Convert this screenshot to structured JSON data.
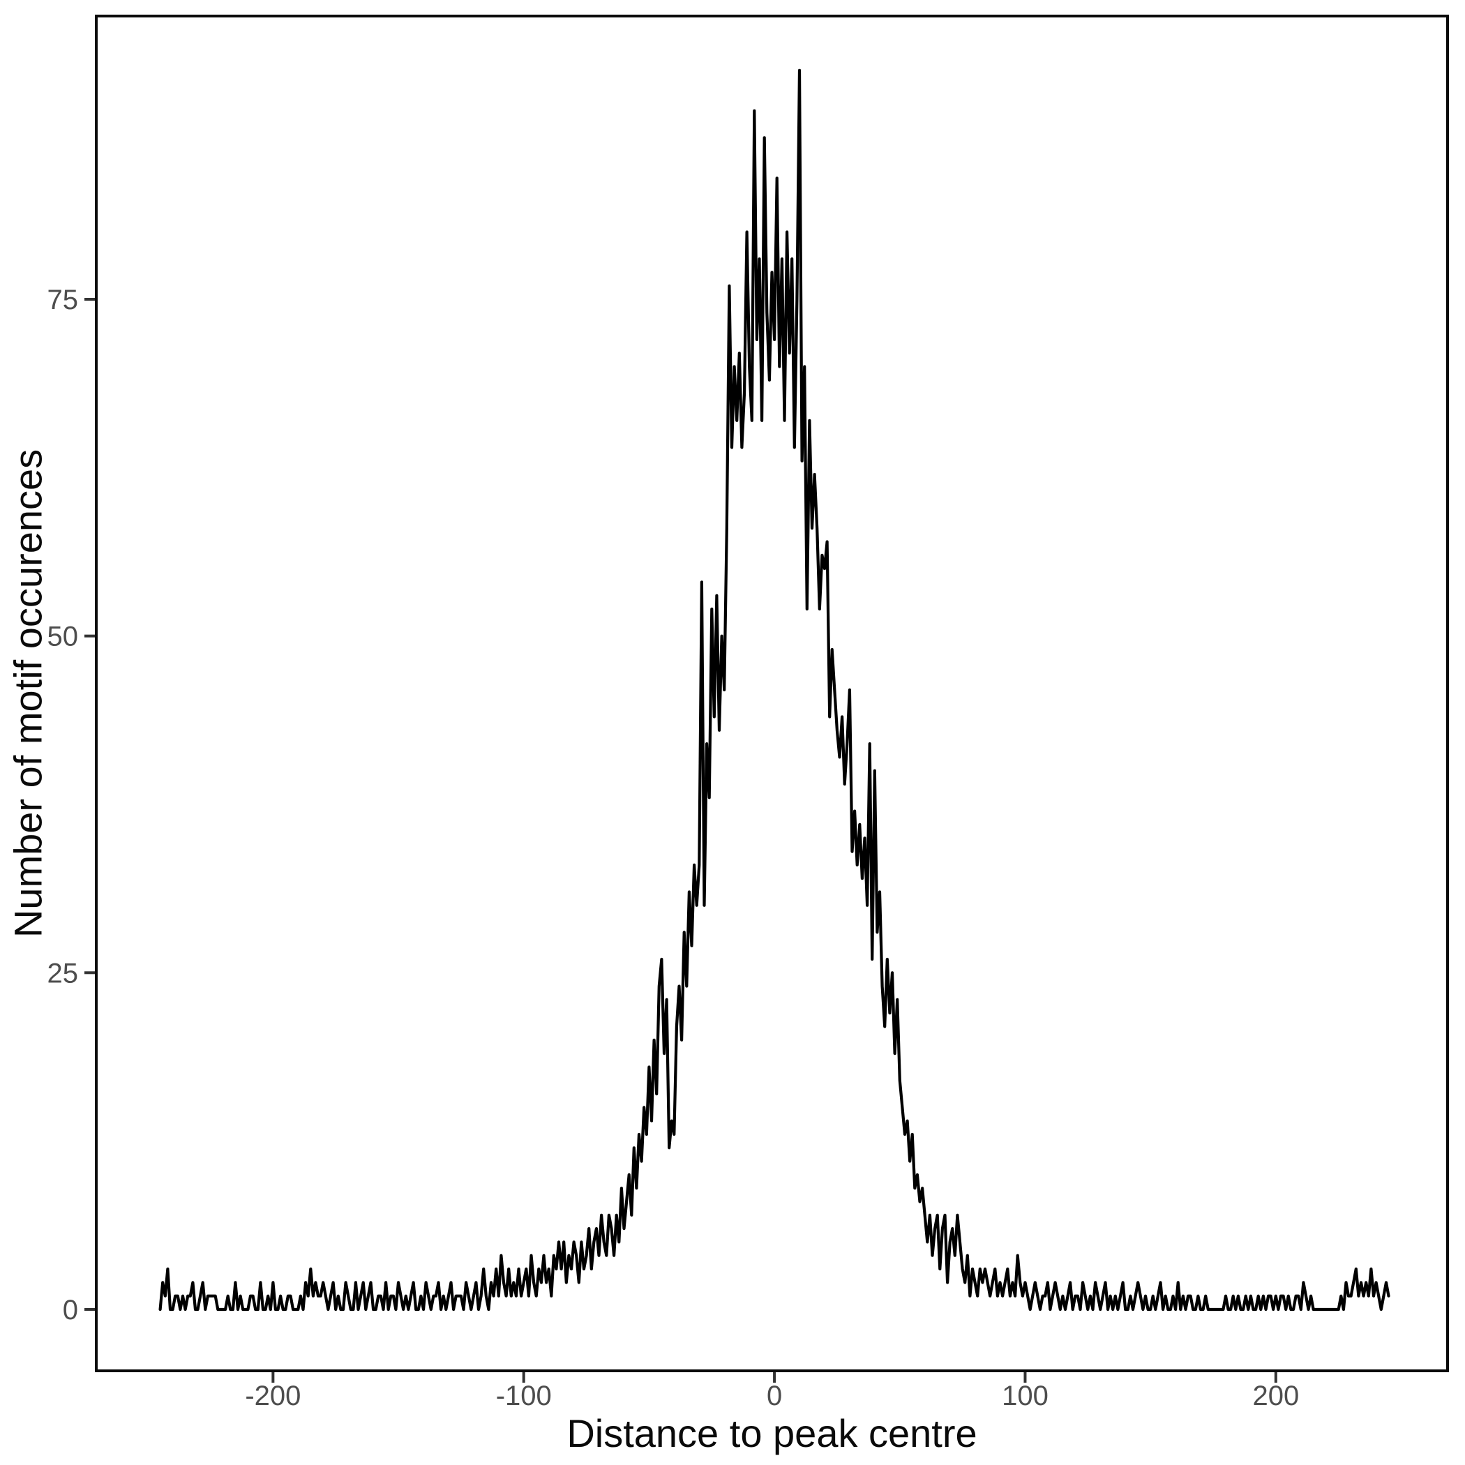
{
  "figure": {
    "background": "#ffffff"
  },
  "chart_data": {
    "type": "line",
    "title": "",
    "xlabel": "Distance to peak centre",
    "ylabel": "Number of motif occurences",
    "x_ticks": [
      -200,
      -100,
      0,
      100,
      200
    ],
    "y_ticks": [
      0,
      25,
      50,
      75
    ],
    "xlim": [
      -270.5,
      268.5
    ],
    "ylim": [
      -4.56,
      96.03
    ],
    "grid": "off",
    "legend": "none",
    "line_color": "#000000",
    "line_width": 4.2,
    "tick_label_color": "#4d4d4d",
    "tick_mark_color": "#333333",
    "panel_border_color": "#0a0a0a",
    "x_start": -245,
    "x_step": 1,
    "values": [
      0,
      2,
      1,
      3,
      0,
      0,
      1,
      1,
      0,
      1,
      0,
      1,
      1,
      2,
      0,
      0,
      1,
      2,
      0,
      1,
      1,
      1,
      1,
      0,
      0,
      0,
      0,
      1,
      0,
      0,
      2,
      0,
      1,
      0,
      0,
      0,
      1,
      1,
      0,
      0,
      2,
      0,
      0,
      1,
      0,
      2,
      0,
      0,
      1,
      0,
      0,
      1,
      1,
      0,
      0,
      0,
      1,
      0,
      2,
      1,
      3,
      1,
      2,
      1,
      1,
      2,
      1,
      0,
      1,
      2,
      0,
      1,
      0,
      0,
      2,
      1,
      0,
      0,
      2,
      0,
      1,
      2,
      0,
      1,
      2,
      0,
      0,
      1,
      1,
      0,
      2,
      0,
      1,
      1,
      0,
      2,
      1,
      0,
      1,
      0,
      1,
      2,
      0,
      0,
      1,
      0,
      2,
      1,
      0,
      1,
      1,
      2,
      0,
      1,
      0,
      1,
      2,
      0,
      1,
      1,
      1,
      0,
      2,
      1,
      0,
      1,
      2,
      0,
      1,
      3,
      1,
      0,
      2,
      1,
      3,
      1,
      4,
      2,
      1,
      3,
      1,
      2,
      1,
      3,
      1,
      2,
      3,
      1,
      4,
      2,
      1,
      3,
      2,
      4,
      2,
      3,
      1,
      4,
      3,
      5,
      3,
      5,
      2,
      4,
      3,
      5,
      4,
      2,
      5,
      3,
      4,
      6,
      3,
      5,
      6,
      4,
      7,
      5,
      4,
      7,
      6,
      4,
      7,
      5,
      9,
      6,
      8,
      10,
      7,
      12,
      9,
      13,
      11,
      15,
      13,
      18,
      14,
      20,
      16,
      24,
      26,
      19,
      23,
      12,
      14,
      13,
      21,
      24,
      20,
      28,
      24,
      31,
      27,
      33,
      30,
      33,
      54,
      30,
      42,
      38,
      52,
      44,
      53,
      43,
      50,
      46,
      58,
      76,
      64,
      70,
      66,
      71,
      64,
      68,
      80,
      70,
      66,
      89,
      72,
      78,
      66,
      87,
      74,
      69,
      77,
      72,
      84,
      70,
      78,
      66,
      80,
      71,
      78,
      64,
      75,
      92,
      63,
      70,
      52,
      66,
      58,
      62,
      58,
      52,
      56,
      55,
      57,
      44,
      49,
      46,
      43,
      41,
      44,
      39,
      42,
      46,
      34,
      37,
      33,
      36,
      32,
      35,
      30,
      42,
      26,
      40,
      28,
      31,
      24,
      21,
      26,
      22,
      25,
      19,
      23,
      17,
      15,
      13,
      14,
      11,
      13,
      9,
      10,
      8,
      9,
      7,
      5,
      7,
      4,
      6,
      7,
      3,
      6,
      7,
      2,
      5,
      6,
      4,
      7,
      5,
      3,
      2,
      4,
      1,
      3,
      2,
      1,
      3,
      2,
      3,
      2,
      1,
      2,
      3,
      1,
      2,
      1,
      2,
      3,
      1,
      2,
      1,
      4,
      2,
      1,
      2,
      1,
      0,
      1,
      2,
      1,
      0,
      1,
      1,
      2,
      0,
      1,
      2,
      1,
      0,
      1,
      0,
      1,
      2,
      0,
      1,
      1,
      0,
      2,
      1,
      0,
      1,
      0,
      2,
      1,
      0,
      1,
      2,
      0,
      1,
      0,
      1,
      0,
      1,
      2,
      0,
      0,
      1,
      0,
      1,
      2,
      1,
      0,
      1,
      0,
      0,
      1,
      0,
      1,
      2,
      0,
      1,
      0,
      0,
      1,
      0,
      2,
      0,
      1,
      0,
      1,
      1,
      0,
      0,
      1,
      0,
      0,
      1,
      0,
      0,
      0,
      0,
      0,
      0,
      0,
      1,
      0,
      0,
      1,
      0,
      1,
      0,
      0,
      1,
      0,
      1,
      0,
      0,
      1,
      0,
      1,
      0,
      1,
      1,
      0,
      1,
      0,
      1,
      1,
      0,
      1,
      0,
      0,
      1,
      1,
      0,
      2,
      1,
      0,
      1,
      0,
      0,
      0,
      0,
      0,
      0,
      0,
      0,
      0,
      0,
      0,
      1,
      0,
      2,
      1,
      1,
      2,
      3,
      1,
      2,
      1,
      2,
      1,
      3,
      1,
      2,
      1,
      0,
      1,
      2,
      1
    ]
  }
}
